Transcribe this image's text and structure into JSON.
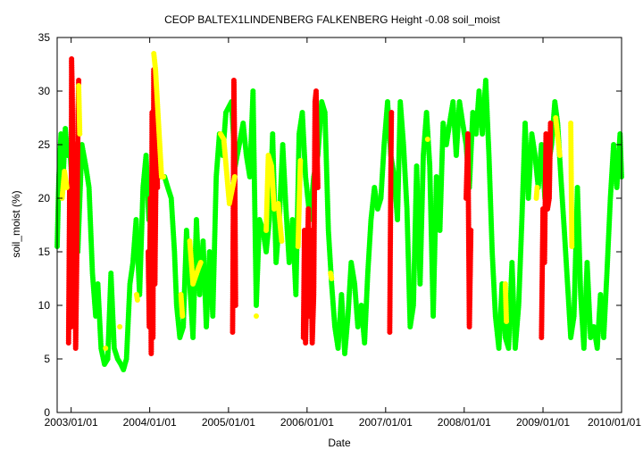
{
  "chart_data": {
    "type": "scatter",
    "title": "CEOP BALTEX1LINDENBERG FALKENBERG Height -0.08 soil_moist",
    "xlabel": "Date",
    "ylabel": "soil_moist (%)",
    "xlim": [
      "2002-10-28",
      "2010-01-01"
    ],
    "ylim": [
      0,
      35
    ],
    "y_ticks": [
      0,
      5,
      10,
      15,
      20,
      25,
      30,
      35
    ],
    "x_ticks": [
      "2003/01/01",
      "2004/01/01",
      "2005/01/01",
      "2006/01/01",
      "2007/01/01",
      "2008/01/01",
      "2009/01/01",
      "2010/01/01"
    ],
    "grid": false,
    "legend": "none",
    "colors": {
      "good": "#00ff00",
      "questionable": "#ffff00",
      "bad": "#ff0000",
      "frame": "#000000"
    },
    "series": [
      {
        "flag": "good",
        "color": "#00ff00",
        "points": [
          [
            "2002-10-28",
            15.5
          ],
          [
            "2002-11-05",
            22
          ],
          [
            "2002-11-15",
            26
          ],
          [
            "2002-11-25",
            22
          ],
          [
            "2002-12-05",
            26.5
          ],
          [
            "2002-12-15",
            24
          ],
          [
            "2002-12-25",
            25
          ],
          [
            "2003-01-10",
            20
          ],
          [
            "2003-02-01",
            15
          ],
          [
            "2003-02-20",
            25
          ],
          [
            "2003-03-10",
            23
          ],
          [
            "2003-03-25",
            21
          ],
          [
            "2003-04-10",
            13
          ],
          [
            "2003-04-25",
            9
          ],
          [
            "2003-05-05",
            12
          ],
          [
            "2003-05-20",
            6
          ],
          [
            "2003-06-05",
            4.5
          ],
          [
            "2003-06-20",
            5
          ],
          [
            "2003-07-05",
            13
          ],
          [
            "2003-07-20",
            6
          ],
          [
            "2003-08-05",
            5
          ],
          [
            "2003-08-20",
            4.5
          ],
          [
            "2003-09-01",
            4
          ],
          [
            "2003-09-15",
            5
          ],
          [
            "2003-10-01",
            12
          ],
          [
            "2003-10-15",
            14
          ],
          [
            "2003-10-30",
            18
          ],
          [
            "2003-11-15",
            11
          ],
          [
            "2003-12-01",
            21
          ],
          [
            "2003-12-15",
            24
          ],
          [
            "2003-12-28",
            18
          ],
          [
            "2004-01-10",
            21
          ],
          [
            "2004-01-25",
            24
          ],
          [
            "2004-02-10",
            22
          ],
          [
            "2004-02-25",
            22
          ],
          [
            "2004-03-10",
            22
          ],
          [
            "2004-03-25",
            21
          ],
          [
            "2004-04-10",
            20
          ],
          [
            "2004-04-25",
            15
          ],
          [
            "2004-05-05",
            10
          ],
          [
            "2004-05-20",
            7
          ],
          [
            "2004-06-05",
            8
          ],
          [
            "2004-06-20",
            17
          ],
          [
            "2004-07-05",
            12
          ],
          [
            "2004-07-20",
            7
          ],
          [
            "2004-08-05",
            18
          ],
          [
            "2004-08-20",
            11
          ],
          [
            "2004-09-05",
            16
          ],
          [
            "2004-09-20",
            8
          ],
          [
            "2004-10-05",
            15
          ],
          [
            "2004-10-20",
            9
          ],
          [
            "2004-11-05",
            22
          ],
          [
            "2004-11-20",
            26
          ],
          [
            "2004-12-05",
            24
          ],
          [
            "2004-12-20",
            28
          ],
          [
            "2005-01-15",
            29
          ],
          [
            "2005-02-01",
            23
          ],
          [
            "2005-02-20",
            25
          ],
          [
            "2005-03-10",
            27
          ],
          [
            "2005-03-25",
            24
          ],
          [
            "2005-04-10",
            22
          ],
          [
            "2005-04-25",
            30
          ],
          [
            "2005-05-10",
            10
          ],
          [
            "2005-05-25",
            18
          ],
          [
            "2005-06-10",
            17
          ],
          [
            "2005-06-25",
            15
          ],
          [
            "2005-07-10",
            18
          ],
          [
            "2005-07-25",
            26
          ],
          [
            "2005-08-10",
            14
          ],
          [
            "2005-08-25",
            18
          ],
          [
            "2005-09-10",
            25
          ],
          [
            "2005-09-25",
            19
          ],
          [
            "2005-10-10",
            14
          ],
          [
            "2005-10-25",
            18
          ],
          [
            "2005-11-10",
            11
          ],
          [
            "2005-11-25",
            26
          ],
          [
            "2005-12-10",
            28
          ],
          [
            "2005-12-25",
            22
          ],
          [
            "2006-01-15",
            18
          ],
          [
            "2006-02-01",
            22
          ],
          [
            "2006-02-20",
            24
          ],
          [
            "2006-03-10",
            29
          ],
          [
            "2006-03-25",
            28
          ],
          [
            "2006-04-10",
            17
          ],
          [
            "2006-04-25",
            12
          ],
          [
            "2006-05-10",
            8
          ],
          [
            "2006-05-25",
            6
          ],
          [
            "2006-06-10",
            11
          ],
          [
            "2006-06-25",
            5.5
          ],
          [
            "2006-07-10",
            9
          ],
          [
            "2006-07-25",
            14
          ],
          [
            "2006-08-10",
            12
          ],
          [
            "2006-08-25",
            8
          ],
          [
            "2006-09-10",
            10
          ],
          [
            "2006-09-25",
            6.5
          ],
          [
            "2006-10-10",
            13
          ],
          [
            "2006-10-25",
            18
          ],
          [
            "2006-11-10",
            21
          ],
          [
            "2006-11-25",
            19
          ],
          [
            "2006-12-10",
            20
          ],
          [
            "2006-12-25",
            25
          ],
          [
            "2007-01-10",
            29
          ],
          [
            "2007-01-25",
            24
          ],
          [
            "2007-02-10",
            22
          ],
          [
            "2007-02-25",
            18
          ],
          [
            "2007-03-10",
            29
          ],
          [
            "2007-03-25",
            25
          ],
          [
            "2007-04-10",
            19
          ],
          [
            "2007-04-25",
            8
          ],
          [
            "2007-05-10",
            10
          ],
          [
            "2007-05-25",
            23
          ],
          [
            "2007-06-10",
            12
          ],
          [
            "2007-06-25",
            24
          ],
          [
            "2007-07-10",
            28
          ],
          [
            "2007-07-25",
            23
          ],
          [
            "2007-08-10",
            9
          ],
          [
            "2007-08-25",
            22
          ],
          [
            "2007-09-10",
            17
          ],
          [
            "2007-09-25",
            27
          ],
          [
            "2007-10-10",
            25
          ],
          [
            "2007-10-25",
            27
          ],
          [
            "2007-11-10",
            29
          ],
          [
            "2007-11-25",
            24
          ],
          [
            "2007-12-10",
            29
          ],
          [
            "2007-12-25",
            27
          ],
          [
            "2008-01-10",
            25
          ],
          [
            "2008-01-25",
            21
          ],
          [
            "2008-02-10",
            28
          ],
          [
            "2008-02-25",
            26
          ],
          [
            "2008-03-10",
            30
          ],
          [
            "2008-03-25",
            26
          ],
          [
            "2008-04-10",
            31
          ],
          [
            "2008-04-25",
            24
          ],
          [
            "2008-05-10",
            15
          ],
          [
            "2008-05-25",
            9
          ],
          [
            "2008-06-10",
            6
          ],
          [
            "2008-06-25",
            12
          ],
          [
            "2008-07-10",
            7
          ],
          [
            "2008-07-25",
            6
          ],
          [
            "2008-08-10",
            14
          ],
          [
            "2008-08-25",
            6
          ],
          [
            "2008-09-10",
            10
          ],
          [
            "2008-09-25",
            18
          ],
          [
            "2008-10-10",
            27
          ],
          [
            "2008-10-25",
            20
          ],
          [
            "2008-11-10",
            26
          ],
          [
            "2008-11-25",
            24
          ],
          [
            "2008-12-10",
            21
          ],
          [
            "2008-12-25",
            25
          ],
          [
            "2009-01-10",
            20
          ],
          [
            "2009-01-25",
            23
          ],
          [
            "2009-02-10",
            25
          ],
          [
            "2009-02-25",
            29
          ],
          [
            "2009-03-10",
            27
          ],
          [
            "2009-03-25",
            22
          ],
          [
            "2009-04-10",
            17
          ],
          [
            "2009-04-25",
            12
          ],
          [
            "2009-05-10",
            7
          ],
          [
            "2009-05-25",
            9
          ],
          [
            "2009-06-10",
            21
          ],
          [
            "2009-06-25",
            11
          ],
          [
            "2009-07-10",
            6
          ],
          [
            "2009-07-25",
            14
          ],
          [
            "2009-08-10",
            7
          ],
          [
            "2009-08-25",
            8
          ],
          [
            "2009-09-10",
            6
          ],
          [
            "2009-09-25",
            11
          ],
          [
            "2009-10-10",
            7
          ],
          [
            "2009-10-25",
            13
          ],
          [
            "2009-11-10",
            20
          ],
          [
            "2009-11-25",
            25
          ],
          [
            "2009-12-10",
            21
          ],
          [
            "2009-12-25",
            26
          ],
          [
            "2010-01-01",
            22
          ]
        ]
      },
      {
        "flag": "bad",
        "color": "#ff0000",
        "points": [
          [
            "2002-12-20",
            6.5
          ],
          [
            "2002-12-25",
            21
          ],
          [
            "2002-12-28",
            12
          ],
          [
            "2003-01-01",
            8
          ],
          [
            "2003-01-03",
            33
          ],
          [
            "2003-01-06",
            30
          ],
          [
            "2003-01-10",
            20
          ],
          [
            "2003-01-14",
            9
          ],
          [
            "2003-01-18",
            25
          ],
          [
            "2003-01-22",
            6
          ],
          [
            "2003-01-27",
            14
          ],
          [
            "2003-02-02",
            28
          ],
          [
            "2003-02-05",
            31
          ],
          [
            "2003-12-25",
            15
          ],
          [
            "2003-12-30",
            8
          ],
          [
            "2004-01-04",
            20
          ],
          [
            "2004-01-08",
            5.5
          ],
          [
            "2004-01-12",
            28
          ],
          [
            "2004-01-16",
            7
          ],
          [
            "2004-01-20",
            32
          ],
          [
            "2004-01-25",
            12
          ],
          [
            "2004-02-01",
            26
          ],
          [
            "2004-02-06",
            21
          ],
          [
            "2005-01-20",
            7.5
          ],
          [
            "2005-01-23",
            18
          ],
          [
            "2005-01-26",
            31
          ],
          [
            "2005-01-30",
            24
          ],
          [
            "2005-02-03",
            10
          ],
          [
            "2005-12-15",
            7
          ],
          [
            "2005-12-20",
            17
          ],
          [
            "2005-12-25",
            6.5
          ],
          [
            "2006-01-01",
            13
          ],
          [
            "2006-01-07",
            19
          ],
          [
            "2006-01-12",
            9
          ],
          [
            "2006-01-18",
            17
          ],
          [
            "2006-01-25",
            6.5
          ],
          [
            "2006-02-01",
            11
          ],
          [
            "2006-02-07",
            29
          ],
          [
            "2006-02-12",
            30
          ],
          [
            "2006-02-20",
            21
          ],
          [
            "2007-01-20",
            7.5
          ],
          [
            "2007-01-25",
            22
          ],
          [
            "2007-01-28",
            28
          ],
          [
            "2008-01-10",
            20
          ],
          [
            "2008-01-18",
            26
          ],
          [
            "2008-01-25",
            8
          ],
          [
            "2008-02-01",
            17
          ],
          [
            "2008-12-25",
            7
          ],
          [
            "2009-01-01",
            19
          ],
          [
            "2009-01-08",
            14
          ],
          [
            "2009-01-15",
            26
          ],
          [
            "2009-01-22",
            19
          ],
          [
            "2009-01-30",
            20
          ],
          [
            "2009-02-05",
            27
          ]
        ]
      },
      {
        "flag": "questionable",
        "color": "#ffff00",
        "points": [
          [
            "2002-11-20",
            20
          ],
          [
            "2002-12-01",
            22.5
          ],
          [
            "2002-12-12",
            21
          ],
          [
            "2003-02-05",
            30.5
          ],
          [
            "2003-02-10",
            26
          ],
          [
            "2003-06-10",
            6
          ],
          [
            "2003-08-15",
            8
          ],
          [
            "2003-11-01",
            11
          ],
          [
            "2003-11-05",
            10.5
          ],
          [
            "2004-01-20",
            33.5
          ],
          [
            "2004-01-28",
            32
          ],
          [
            "2004-02-25",
            22
          ],
          [
            "2004-03-05",
            22
          ],
          [
            "2004-05-25",
            11
          ],
          [
            "2004-06-01",
            9
          ],
          [
            "2004-07-05",
            16
          ],
          [
            "2004-07-20",
            12
          ],
          [
            "2004-08-15",
            13.5
          ],
          [
            "2004-08-25",
            14
          ],
          [
            "2004-11-25",
            26
          ],
          [
            "2004-12-10",
            25.5
          ],
          [
            "2005-01-05",
            19.5
          ],
          [
            "2005-01-30",
            22
          ],
          [
            "2005-05-10",
            9
          ],
          [
            "2005-06-25",
            17
          ],
          [
            "2005-07-05",
            24
          ],
          [
            "2005-07-20",
            23
          ],
          [
            "2005-08-01",
            19
          ],
          [
            "2005-08-20",
            19.5
          ],
          [
            "2005-09-05",
            16
          ],
          [
            "2005-11-20",
            15.5
          ],
          [
            "2005-12-01",
            23.5
          ],
          [
            "2006-04-20",
            13
          ],
          [
            "2006-04-25",
            12.5
          ],
          [
            "2007-07-15",
            25.5
          ],
          [
            "2008-07-10",
            12
          ],
          [
            "2008-07-15",
            8.5
          ],
          [
            "2008-12-01",
            20
          ],
          [
            "2008-12-05",
            21
          ],
          [
            "2009-03-01",
            27.5
          ],
          [
            "2009-03-20",
            24
          ],
          [
            "2009-05-10",
            27
          ],
          [
            "2009-05-15",
            15.5
          ]
        ]
      }
    ]
  }
}
